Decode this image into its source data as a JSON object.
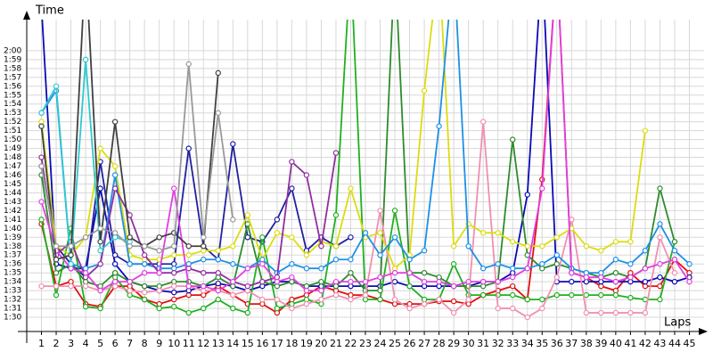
{
  "chart_data": {
    "type": "line",
    "y_label": "Time",
    "x_label": "Laps",
    "grid": true,
    "xlim": [
      0,
      46
    ],
    "ylim": [
      88.4,
      123.5
    ],
    "x": [
      1,
      2,
      3,
      4,
      5,
      6,
      7,
      8,
      9,
      10,
      11,
      12,
      13,
      14,
      15,
      16,
      17,
      18,
      19,
      20,
      21,
      22,
      23,
      24,
      25,
      26,
      27,
      28,
      29,
      30,
      31,
      32,
      33,
      34,
      35,
      36,
      37,
      38,
      39,
      40,
      41,
      42,
      43,
      44,
      45
    ],
    "xticks": [
      1,
      2,
      3,
      4,
      5,
      6,
      7,
      8,
      9,
      10,
      11,
      12,
      13,
      14,
      15,
      16,
      17,
      18,
      19,
      20,
      21,
      22,
      23,
      24,
      25,
      26,
      27,
      28,
      29,
      30,
      31,
      32,
      33,
      34,
      35,
      36,
      37,
      38,
      39,
      40,
      41,
      42,
      43,
      44,
      45
    ],
    "yticks": [
      {
        "value": 90,
        "label": "1:30"
      },
      {
        "value": 91,
        "label": "1:31"
      },
      {
        "value": 92,
        "label": "1:32"
      },
      {
        "value": 93,
        "label": "1:33"
      },
      {
        "value": 94,
        "label": "1:34"
      },
      {
        "value": 95,
        "label": "1:35"
      },
      {
        "value": 96,
        "label": "1:36"
      },
      {
        "value": 97,
        "label": "1:37"
      },
      {
        "value": 98,
        "label": "1:38"
      },
      {
        "value": 99,
        "label": "1:39"
      },
      {
        "value": 100,
        "label": "1:40"
      },
      {
        "value": 101,
        "label": "1:41"
      },
      {
        "value": 102,
        "label": "1:42"
      },
      {
        "value": 103,
        "label": "1:43"
      },
      {
        "value": 104,
        "label": "1:44"
      },
      {
        "value": 105,
        "label": "1:45"
      },
      {
        "value": 106,
        "label": "1:46"
      },
      {
        "value": 107,
        "label": "1:47"
      },
      {
        "value": 108,
        "label": "1:48"
      },
      {
        "value": 109,
        "label": "1:49"
      },
      {
        "value": 110,
        "label": "1:50"
      },
      {
        "value": 111,
        "label": "1:51"
      },
      {
        "value": 112,
        "label": "1:52"
      },
      {
        "value": 113,
        "label": "1:53"
      },
      {
        "value": 114,
        "label": "1:54"
      },
      {
        "value": 115,
        "label": "1:55"
      },
      {
        "value": 116,
        "label": "1:56"
      },
      {
        "value": 117,
        "label": "1:57"
      },
      {
        "value": 118,
        "label": "1:58"
      },
      {
        "value": 119,
        "label": "1:59"
      },
      {
        "value": 120,
        "label": "2:00"
      }
    ],
    "series": [
      {
        "color": "#e01010",
        "values": [
          100.5,
          93.5,
          94,
          91.5,
          91.2,
          93.5,
          93.5,
          92,
          91.5,
          92,
          92.5,
          92.5,
          93.5,
          92.5,
          91.5,
          91.5,
          90.5,
          92,
          92.5,
          93.5,
          93,
          92.5,
          92.5,
          92,
          91.5,
          91.5,
          91.5,
          91.8,
          91.8,
          91.5,
          92.5,
          93,
          93.5,
          92,
          105.5,
          130,
          95,
          94.5,
          93.5,
          93,
          95,
          93.5,
          93.5,
          96.5,
          95
        ]
      },
      {
        "color": "#0a0ab4",
        "values": [
          125,
          96,
          95.5,
          95.5,
          104.5,
          96,
          94,
          93.5,
          93,
          92.8,
          93,
          93.5,
          93.8,
          93.5,
          93,
          93.5,
          94,
          94,
          93.5,
          93.5,
          93.5,
          93.5,
          93.5,
          93.5,
          94,
          93.5,
          93.5,
          93.5,
          93.5,
          93.5,
          94,
          94,
          95,
          103.8,
          130,
          94,
          94,
          94,
          94,
          94,
          94,
          94,
          94.5,
          94,
          94.5
        ]
      },
      {
        "color": "#2020a0",
        "values": [
          107,
          98,
          96,
          94.5,
          107.5,
          97,
          96,
          96,
          96,
          96,
          109,
          98,
          96.5,
          109.5,
          99,
          98.5,
          101,
          104.5,
          97.5,
          99,
          98,
          99,
          null,
          null,
          null,
          null,
          null,
          null,
          null,
          null,
          null,
          null,
          null,
          null,
          null,
          null,
          null,
          null,
          null,
          null,
          null,
          null,
          null,
          null,
          null
        ]
      },
      {
        "color": "#20b020",
        "values": [
          101,
          92.5,
          100,
          91.2,
          91,
          94.5,
          92.5,
          92,
          91,
          91.2,
          90.5,
          91,
          92,
          91,
          90.5,
          99,
          91,
          91.5,
          92,
          91.5,
          101.5,
          130,
          92,
          92,
          102,
          93.5,
          92,
          92,
          96,
          92.5,
          92.5,
          92.5,
          92.5,
          92,
          92,
          92.5,
          92.5,
          92.5,
          92.5,
          92.5,
          92.2,
          92,
          92,
          98.5,
          null
        ]
      },
      {
        "color": "#2e8b2e",
        "values": [
          106,
          95,
          96,
          94,
          93.5,
          95,
          94,
          93.5,
          93.5,
          94,
          94,
          93.5,
          94.5,
          93.5,
          100.5,
          94,
          93.5,
          94,
          93.5,
          94,
          93.5,
          95,
          93,
          93,
          130,
          95,
          95,
          94.5,
          93.5,
          93.5,
          93.5,
          94,
          110,
          97,
          95.5,
          96,
          95.5,
          95,
          94.5,
          95,
          94.5,
          95.5,
          104.5,
          98.5,
          null
        ]
      },
      {
        "color": "#f090b0",
        "values": [
          93.5,
          93.5,
          93.5,
          93.5,
          93,
          93.5,
          93,
          92.8,
          93,
          93.5,
          93.5,
          93,
          93,
          92.5,
          93,
          92,
          92,
          91,
          91.5,
          92,
          92.5,
          92,
          92.5,
          102,
          92,
          91,
          91.5,
          92,
          90.5,
          92,
          112,
          91,
          91,
          90,
          91,
          94.5,
          101,
          90.5,
          90.5,
          90.5,
          90.5,
          90.5,
          99,
          95,
          null
        ]
      },
      {
        "color": "#dcdc10",
        "values": [
          112,
          98,
          97,
          99,
          109,
          107,
          97,
          96.5,
          96.5,
          97,
          97,
          97.5,
          97.5,
          98,
          101.5,
          96.5,
          99.5,
          99,
          97,
          98.5,
          98,
          104.5,
          99,
          99.5,
          95.5,
          97,
          115.5,
          130,
          98,
          100.5,
          99.5,
          99.5,
          98.5,
          98,
          98,
          99,
          100,
          98,
          97.5,
          98.5,
          98.5,
          111,
          null,
          null,
          null
        ]
      },
      {
        "color": "#1e90e6",
        "values": [
          113,
          115.5,
          96,
          95.5,
          96,
          106,
          96,
          96,
          95.5,
          95.5,
          96,
          96.5,
          96.5,
          96,
          95.5,
          96.5,
          95,
          96,
          95.5,
          95.5,
          96.5,
          96.5,
          99.5,
          97,
          99,
          96.5,
          97.5,
          111.5,
          130,
          98,
          95.5,
          96,
          95.5,
          95.5,
          96,
          97,
          95.5,
          95,
          95,
          96.5,
          96,
          97.5,
          100.5,
          97.5,
          96
        ]
      },
      {
        "color": "#9030a0",
        "values": [
          108,
          97,
          98.5,
          94.5,
          96,
          104.5,
          101.5,
          97,
          95,
          95,
          95.5,
          95,
          95,
          94,
          93.5,
          94,
          94.5,
          107.5,
          106,
          98,
          108.5,
          null,
          null,
          null,
          null,
          null,
          null,
          null,
          null,
          null,
          null,
          null,
          null,
          null,
          null,
          null,
          null,
          null,
          null,
          null,
          null,
          null,
          null,
          null,
          null
        ]
      },
      {
        "color": "#e040e0",
        "values": [
          103,
          97.5,
          95.5,
          95,
          93,
          94,
          94,
          95,
          95,
          104.5,
          93.5,
          93.5,
          93,
          94,
          95.5,
          96,
          94,
          94.5,
          93,
          93,
          94,
          94,
          94,
          94.5,
          95,
          95,
          94,
          94,
          93.5,
          94,
          94,
          94,
          94.5,
          95.5,
          104.5,
          130,
          95,
          94.5,
          94.5,
          94,
          94.5,
          95.5,
          96,
          96.5,
          94
        ]
      },
      {
        "color": "#30c8d0",
        "values": [
          113,
          116,
          96,
          119,
          97.5,
          99,
          98.5,
          null,
          null,
          null,
          null,
          null,
          null,
          null,
          null,
          null,
          null,
          null,
          null,
          null,
          null,
          null,
          null,
          null,
          null,
          null,
          null,
          null,
          null,
          null,
          null,
          null,
          null,
          null,
          null,
          null,
          null,
          null,
          null,
          null,
          null,
          null,
          null,
          null,
          null
        ]
      },
      {
        "color": "#404040",
        "values": [
          111.5,
          96.5,
          97,
          130,
          98.5,
          112,
          99,
          98,
          99,
          99.5,
          98,
          98,
          117.5,
          null,
          null,
          null,
          null,
          null,
          null,
          null,
          null,
          null,
          null,
          null,
          null,
          null,
          null,
          null,
          null,
          null,
          null,
          null,
          null,
          null,
          null,
          null,
          null,
          null,
          null,
          null,
          null,
          null,
          null,
          null,
          null
        ]
      },
      {
        "color": "#999999",
        "values": [
          107,
          98,
          98,
          99,
          100,
          99.5,
          98,
          98,
          97.5,
          98,
          118.5,
          99,
          113,
          101,
          null,
          null,
          null,
          null,
          null,
          null,
          null,
          null,
          null,
          null,
          null,
          null,
          null,
          null,
          null,
          null,
          null,
          null,
          null,
          null,
          null,
          null,
          null,
          null,
          null,
          null,
          null,
          null,
          null,
          null,
          null
        ]
      }
    ]
  }
}
